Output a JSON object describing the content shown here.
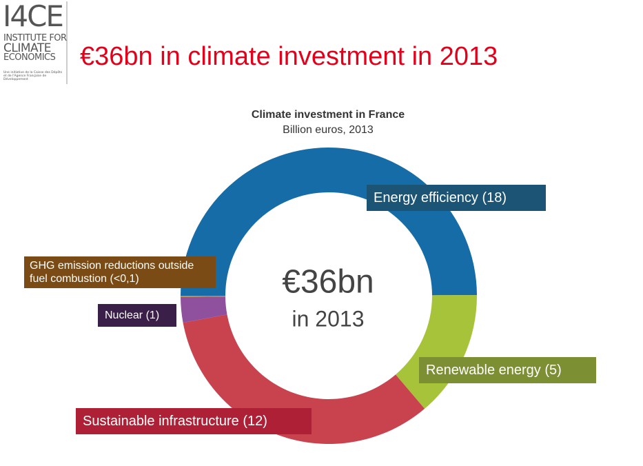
{
  "header": {
    "logo": "I4CE",
    "logo_lines": [
      "INSTITUTE FOR",
      "CLIMATE",
      "ECONOMICS"
    ],
    "tagline": "Une initiative de la Caisse des Dépôts et de l'Agence Française de Développement",
    "title": "€36bn in climate investment in 2013"
  },
  "chart_data": {
    "type": "donut",
    "title": "Climate investment in France",
    "subtitle": "Billion euros, 2013",
    "categories": [
      "Energy efficiency",
      "Renewable energy",
      "Sustainable infrastructure",
      "Nuclear",
      "GHG emission reductions outside fuel combustion"
    ],
    "values": [
      18,
      5,
      12,
      1,
      0.05
    ],
    "value_labels": [
      "(18)",
      "(5)",
      "(12)",
      "(1)",
      "(<0,1)"
    ],
    "colors": [
      "#166ca6",
      "#a6c339",
      "#c9434f",
      "#8f509d",
      "#c98a3a"
    ],
    "label_colors": [
      "#1b5475",
      "#7c8f33",
      "#ae2035",
      "#3a1f49",
      "#7a4b14"
    ],
    "center_text": [
      "€36bn",
      "in 2013"
    ]
  }
}
